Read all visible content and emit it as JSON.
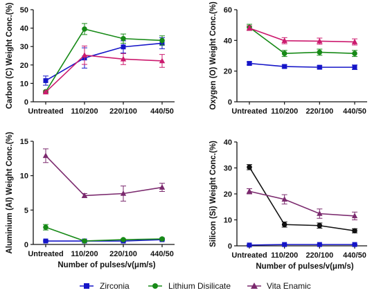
{
  "chart_data": [
    {
      "type": "line",
      "categories": [
        "Untreated",
        "110/200",
        "220/100",
        "440/50"
      ],
      "ylabel": "Carbon (C) Weight Conc.(%)",
      "xlabel": "",
      "ylim": [
        0,
        50
      ],
      "yticks": [
        0,
        10,
        20,
        30,
        40,
        50
      ],
      "grid": false,
      "series": [
        {
          "name": "Zirconia",
          "color": "#1515c8",
          "marker": "square",
          "values": [
            11.5,
            23.8,
            29.8,
            31.8
          ],
          "errors": [
            2.5,
            5.5,
            3.3,
            3.0
          ]
        },
        {
          "name": "Lithium Disilicate",
          "color": "#178a17",
          "marker": "circle",
          "values": [
            5.5,
            39.5,
            34.3,
            33.3
          ],
          "errors": [
            0.5,
            3.0,
            2.5,
            2.5
          ]
        },
        {
          "name": "Vita Enamic",
          "color": "#cc1a6e",
          "marker": "triangle",
          "values": [
            5.3,
            25.3,
            23.2,
            22.2
          ],
          "errors": [
            0.5,
            5.0,
            3.0,
            3.5
          ]
        }
      ]
    },
    {
      "type": "line",
      "categories": [
        "Untreated",
        "110/200",
        "220/100",
        "440/50"
      ],
      "ylabel": "Oxygen (O) Weight Conc.(%)",
      "xlabel": "",
      "ylim": [
        0,
        60
      ],
      "yticks": [
        0,
        20,
        40,
        60
      ],
      "grid": false,
      "series": [
        {
          "name": "Zirconia",
          "color": "#1515c8",
          "marker": "square",
          "values": [
            25.0,
            23.0,
            22.5,
            22.5
          ],
          "errors": [
            1.0,
            1.0,
            1.0,
            1.5
          ]
        },
        {
          "name": "Lithium Disilicate",
          "color": "#178a17",
          "marker": "circle",
          "values": [
            48.5,
            31.5,
            32.3,
            31.5
          ],
          "errors": [
            2.0,
            2.0,
            2.0,
            2.0
          ]
        },
        {
          "name": "Vita Enamic",
          "color": "#cc1a6e",
          "marker": "triangle",
          "values": [
            48.0,
            39.8,
            39.5,
            39.0
          ],
          "errors": [
            1.5,
            2.0,
            2.0,
            2.0
          ]
        }
      ]
    },
    {
      "type": "line",
      "categories": [
        "Untreated",
        "110/200",
        "220/100",
        "440/50"
      ],
      "ylabel": "Aluminium (Al) Weight Conc.(%)",
      "xlabel": "Number of pulses/v(μm/s)",
      "ylim": [
        0,
        15
      ],
      "yticks": [
        0,
        5,
        10,
        15
      ],
      "grid": false,
      "series": [
        {
          "name": "Zirconia",
          "color": "#1515c8",
          "marker": "square",
          "values": [
            0.5,
            0.5,
            0.5,
            0.7
          ],
          "errors": [
            0.1,
            0.1,
            0.1,
            0.1
          ]
        },
        {
          "name": "Lithium Disilicate",
          "color": "#178a17",
          "marker": "circle",
          "values": [
            2.5,
            0.5,
            0.7,
            0.8
          ],
          "errors": [
            0.4,
            0.1,
            0.1,
            0.1
          ]
        },
        {
          "name": "Vita Enamic",
          "color": "#7b2a6e",
          "marker": "triangle",
          "values": [
            12.9,
            7.1,
            7.4,
            8.3
          ],
          "errors": [
            1.0,
            0.3,
            1.1,
            0.6
          ]
        }
      ]
    },
    {
      "type": "line",
      "categories": [
        "Untreated",
        "110/200",
        "220/100",
        "440/50"
      ],
      "ylabel": "Silicon (Si) Weight Conc.(%)",
      "xlabel": "Number of pulses/v(μm/s)",
      "ylim": [
        0,
        40
      ],
      "yticks": [
        0,
        10,
        20,
        30,
        40
      ],
      "grid": false,
      "series": [
        {
          "name": "Zirconia",
          "color": "#1515c8",
          "marker": "square",
          "values": [
            0.3,
            0.5,
            0.5,
            0.5
          ],
          "errors": [
            0.1,
            0.1,
            0.1,
            0.1
          ]
        },
        {
          "name": "Lithium Disilicate",
          "color": "#111111",
          "marker": "circle",
          "values": [
            30.3,
            8.2,
            7.8,
            5.8
          ],
          "errors": [
            1.0,
            1.0,
            1.0,
            0.8
          ]
        },
        {
          "name": "Vita Enamic",
          "color": "#7b2a6e",
          "marker": "triangle",
          "values": [
            21.0,
            17.9,
            12.4,
            11.5
          ],
          "errors": [
            1.0,
            1.8,
            1.8,
            1.5
          ]
        }
      ]
    }
  ],
  "legend": {
    "placement": "bottom",
    "items": [
      {
        "label": "Zirconia",
        "color": "#1515c8",
        "marker": "square"
      },
      {
        "label": "Lithium Disilicate",
        "color": "#178a17",
        "marker": "circle"
      },
      {
        "label": "Vita Enamic",
        "color": "#7b2a6e",
        "marker": "triangle"
      }
    ]
  }
}
